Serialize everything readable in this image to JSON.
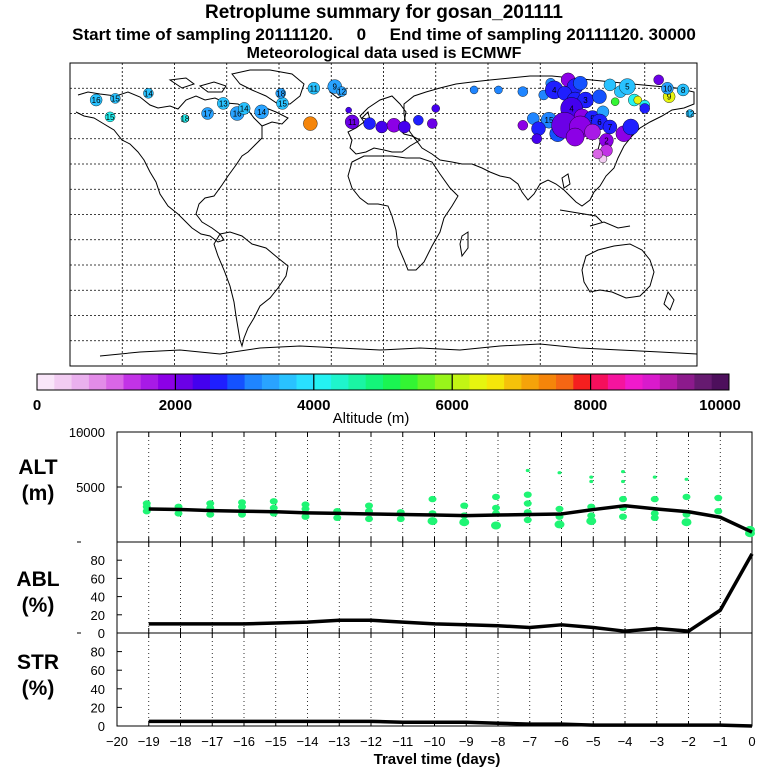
{
  "header": {
    "title": "Retroplume summary for gosan_201111",
    "sampling_line": "Start time of sampling 20111120.     0     End time of sampling 20111120. 30000",
    "met_line": "Meteorological data used is ECMWF"
  },
  "colorbar": {
    "label": "Altitude (m)",
    "ticks": [
      "0",
      "2000",
      "4000",
      "6000",
      "8000",
      "10000"
    ],
    "colors": [
      "#f9e6f9",
      "#f2ccf2",
      "#eab0ee",
      "#e38ce8",
      "#d966e6",
      "#c233e6",
      "#a81ae6",
      "#8c00e6",
      "#6b00e6",
      "#4400ee",
      "#1f1fff",
      "#1452ff",
      "#1f85ff",
      "#29a3ff",
      "#29c2ff",
      "#29e0ff",
      "#24f2f2",
      "#1ff5cc",
      "#1af5a3",
      "#14f57a",
      "#1af552",
      "#33f533",
      "#66f524",
      "#99f51a",
      "#c2f514",
      "#e6f50f",
      "#f5e60a",
      "#f5c20a",
      "#f5a30a",
      "#f5850a",
      "#f56614",
      "#f51f1f",
      "#f50f5c",
      "#f5149e",
      "#f01acc",
      "#d91acc",
      "#b31aa8",
      "#8c1a8c",
      "#661a70",
      "#4d0f5c"
    ]
  },
  "map": {
    "plume_points": [
      {
        "label": "16",
        "lon": -165,
        "lat": 68,
        "color": "#29c2ff",
        "size": 6
      },
      {
        "label": "15",
        "lon": -154,
        "lat": 69,
        "color": "#29c2ff",
        "size": 5
      },
      {
        "label": "14",
        "lon": -135,
        "lat": 72,
        "color": "#29c2ff",
        "size": 5
      },
      {
        "label": "15",
        "lon": -157,
        "lat": 58,
        "color": "#24f2f2",
        "size": 5
      },
      {
        "label": "18",
        "lon": -114,
        "lat": 57,
        "color": "#24f2f2",
        "size": 4
      },
      {
        "label": "17",
        "lon": -101,
        "lat": 60,
        "color": "#29a3ff",
        "size": 6
      },
      {
        "label": "16",
        "lon": -84,
        "lat": 60,
        "color": "#29a3ff",
        "size": 7
      },
      {
        "label": "13",
        "lon": -92,
        "lat": 66,
        "color": "#29c2ff",
        "size": 6
      },
      {
        "label": "14",
        "lon": -80,
        "lat": 63,
        "color": "#29c2ff",
        "size": 6
      },
      {
        "label": "14",
        "lon": -70,
        "lat": 61,
        "color": "#29a3ff",
        "size": 7
      },
      {
        "label": "15",
        "lon": -58,
        "lat": 66,
        "color": "#29c2ff",
        "size": 6
      },
      {
        "label": "18",
        "lon": -59,
        "lat": 72,
        "color": "#29a3ff",
        "size": 5
      },
      {
        "label": "11",
        "lon": -40,
        "lat": 75,
        "color": "#29c2ff",
        "size": 6
      },
      {
        "label": "9",
        "lon": -28,
        "lat": 76,
        "color": "#29a3ff",
        "size": 7
      },
      {
        "label": "12",
        "lon": -24,
        "lat": 73,
        "color": "#29a3ff",
        "size": 5
      },
      {
        "label": "",
        "lon": -20,
        "lat": 62,
        "color": "#4400ee",
        "size": 3
      },
      {
        "label": "",
        "lon": -42,
        "lat": 54,
        "color": "#f5850a",
        "size": 7
      },
      {
        "label": "11",
        "lon": -18,
        "lat": 55,
        "color": "#6b00e6",
        "size": 7
      },
      {
        "label": "",
        "lon": -8,
        "lat": 54,
        "color": "#1f1fff",
        "size": 6
      },
      {
        "label": "",
        "lon": -1,
        "lat": 52,
        "color": "#4400ee",
        "size": 6
      },
      {
        "label": "",
        "lon": 6,
        "lat": 53,
        "color": "#8c00e6",
        "size": 7
      },
      {
        "label": "",
        "lon": 12,
        "lat": 52,
        "color": "#4400ee",
        "size": 6
      },
      {
        "label": "",
        "lon": 20,
        "lat": 56,
        "color": "#1f1fff",
        "size": 5
      },
      {
        "label": "",
        "lon": 28,
        "lat": 54,
        "color": "#6b00e6",
        "size": 5
      },
      {
        "label": "",
        "lon": 30,
        "lat": 63,
        "color": "#4400ee",
        "size": 4
      },
      {
        "label": "",
        "lon": 52,
        "lat": 74,
        "color": "#1f85ff",
        "size": 4
      },
      {
        "label": "",
        "lon": 66,
        "lat": 74,
        "color": "#1f85ff",
        "size": 4
      },
      {
        "label": "",
        "lon": 80,
        "lat": 73,
        "color": "#1f85ff",
        "size": 5
      },
      {
        "label": "",
        "lon": 92,
        "lat": 71,
        "color": "#1f85ff",
        "size": 5
      },
      {
        "label": "",
        "lon": 96,
        "lat": 78,
        "color": "#1f85ff",
        "size": 5
      },
      {
        "label": "4",
        "lon": 98,
        "lat": 74,
        "color": "#1f1fff",
        "size": 9
      },
      {
        "label": "",
        "lon": 106,
        "lat": 80,
        "color": "#8c00e6",
        "size": 7
      },
      {
        "label": "",
        "lon": 110,
        "lat": 76,
        "color": "#1f1fff",
        "size": 8
      },
      {
        "label": "",
        "lon": 104,
        "lat": 72,
        "color": "#1f1fff",
        "size": 7
      },
      {
        "label": "",
        "lon": 113,
        "lat": 78,
        "color": "#1452ff",
        "size": 7
      },
      {
        "label": "",
        "lon": 110,
        "lat": 68,
        "color": "#1f1fff",
        "size": 8
      },
      {
        "label": "3",
        "lon": 116,
        "lat": 68,
        "color": "#1f1fff",
        "size": 8
      },
      {
        "label": "",
        "lon": 124,
        "lat": 70,
        "color": "#1452ff",
        "size": 7
      },
      {
        "label": "",
        "lon": 130,
        "lat": 77,
        "color": "#29c2ff",
        "size": 6
      },
      {
        "label": "",
        "lon": 133,
        "lat": 67,
        "color": "#33f533",
        "size": 4
      },
      {
        "label": "",
        "lon": 136,
        "lat": 73,
        "color": "#29c2ff",
        "size": 6
      },
      {
        "label": "5",
        "lon": 140,
        "lat": 76,
        "color": "#29c2ff",
        "size": 8
      },
      {
        "label": "",
        "lon": 144,
        "lat": 68,
        "color": "#24f2f2",
        "size": 6
      },
      {
        "label": "",
        "lon": 146,
        "lat": 68,
        "color": "#e6f50f",
        "size": 4
      },
      {
        "label": "",
        "lon": 150,
        "lat": 65,
        "color": "#24f2f2",
        "size": 5
      },
      {
        "label": "",
        "lon": 150,
        "lat": 63,
        "color": "#1f1fff",
        "size": 5
      },
      {
        "label": "9",
        "lon": 164,
        "lat": 70,
        "color": "#e6f50f",
        "size": 6
      },
      {
        "label": "",
        "lon": 158,
        "lat": 80,
        "color": "#6b00e6",
        "size": 5
      },
      {
        "label": "10",
        "lon": 163,
        "lat": 75,
        "color": "#29a3ff",
        "size": 6
      },
      {
        "label": "8",
        "lon": 172,
        "lat": 74,
        "color": "#29c2ff",
        "size": 6
      },
      {
        "label": "12",
        "lon": 176,
        "lat": 60,
        "color": "#29c2ff",
        "size": 4
      },
      {
        "label": "4",
        "lon": 108,
        "lat": 63,
        "color": "#4400ee",
        "size": 11
      },
      {
        "label": "",
        "lon": 114,
        "lat": 58,
        "color": "#8c00e6",
        "size": 8
      },
      {
        "label": "5",
        "lon": 120,
        "lat": 57,
        "color": "#1f1fff",
        "size": 8
      },
      {
        "label": "",
        "lon": 126,
        "lat": 61,
        "color": "#29a3ff",
        "size": 6
      },
      {
        "label": "6",
        "lon": 124,
        "lat": 55,
        "color": "#1f1fff",
        "size": 8
      },
      {
        "label": "15",
        "lon": 95,
        "lat": 56,
        "color": "#1f85ff",
        "size": 8
      },
      {
        "label": "",
        "lon": 86,
        "lat": 57,
        "color": "#1f85ff",
        "size": 6
      },
      {
        "label": "",
        "lon": 80,
        "lat": 53,
        "color": "#8c00e6",
        "size": 5
      },
      {
        "label": "",
        "lon": 89,
        "lat": 51,
        "color": "#1f1fff",
        "size": 7
      },
      {
        "label": "6",
        "lon": 100,
        "lat": 48,
        "color": "#1452ff",
        "size": 8
      },
      {
        "label": "",
        "lon": 104,
        "lat": 53,
        "color": "#6b00e6",
        "size": 13
      },
      {
        "label": "",
        "lon": 113,
        "lat": 52,
        "color": "#8c00e6",
        "size": 11
      },
      {
        "label": "",
        "lon": 110,
        "lat": 46,
        "color": "#8c00e6",
        "size": 9
      },
      {
        "label": "",
        "lon": 120,
        "lat": 49,
        "color": "#a81ae6",
        "size": 8
      },
      {
        "label": "7",
        "lon": 130,
        "lat": 52,
        "color": "#1f1fff",
        "size": 7
      },
      {
        "label": "",
        "lon": 138,
        "lat": 48,
        "color": "#8c00e6",
        "size": 8
      },
      {
        "label": "",
        "lon": 142,
        "lat": 52,
        "color": "#1f1fff",
        "size": 8
      },
      {
        "label": "2",
        "lon": 128,
        "lat": 44,
        "color": "#8c00e6",
        "size": 7
      },
      {
        "label": "",
        "lon": 128,
        "lat": 38,
        "color": "#c233e6",
        "size": 6
      },
      {
        "label": "",
        "lon": 126,
        "lat": 33,
        "color": "#f2ccf2",
        "size": 4
      },
      {
        "label": "",
        "lon": 123,
        "lat": 36,
        "color": "#d966e6",
        "size": 5
      },
      {
        "label": "",
        "lon": 88,
        "lat": 45,
        "color": "#4400ee",
        "size": 5
      }
    ]
  },
  "panels": [
    {
      "name": "altitude",
      "label": "ALT",
      "unit": "(m)",
      "yticks": [
        "10000",
        "5000"
      ]
    },
    {
      "name": "abl",
      "label": "ABL",
      "unit": "(%)",
      "yticks": [
        "80",
        "60",
        "40",
        "20",
        "0"
      ]
    },
    {
      "name": "str",
      "label": "STR",
      "unit": "(%)",
      "yticks": [
        "80",
        "60",
        "40",
        "20",
        "0"
      ]
    }
  ],
  "xaxis": {
    "label": "Travel time (days)",
    "ticks": [
      "−20",
      "−19",
      "−18",
      "−17",
      "−16",
      "−15",
      "−14",
      "−13",
      "−12",
      "−11",
      "−10",
      "−9",
      "−8",
      "−7",
      "−6",
      "−5",
      "−4",
      "−3",
      "−2",
      "−1",
      "0"
    ]
  },
  "chart_data": {
    "type": "line",
    "title": "Retroplume summary for gosan_201111",
    "xlabel": "Travel time (days)",
    "xlim": [
      -20,
      0
    ],
    "panels": [
      {
        "name": "ALT",
        "ylabel": "ALT (m)",
        "ylim": [
          0,
          10000
        ],
        "mean_line": {
          "x": [
            -19,
            -18,
            -17,
            -16,
            -15,
            -14,
            -13,
            -12,
            -11,
            -10,
            -9,
            -8,
            -7,
            -6,
            -5,
            -4,
            -3,
            -2,
            -1,
            0
          ],
          "y": [
            3000,
            2950,
            2850,
            2800,
            2750,
            2650,
            2600,
            2550,
            2500,
            2450,
            2400,
            2450,
            2500,
            2550,
            2950,
            3300,
            3000,
            2750,
            2250,
            900
          ]
        },
        "clusters": {
          "marker_color": "#1ff574",
          "points": [
            [
              -19,
              3200
            ],
            [
              -19,
              2800
            ],
            [
              -19,
              3500
            ],
            [
              -18,
              3200
            ],
            [
              -18,
              2600
            ],
            [
              -17,
              3100
            ],
            [
              -17,
              2500
            ],
            [
              -17,
              3500
            ],
            [
              -16,
              3200
            ],
            [
              -16,
              2500
            ],
            [
              -16,
              3600
            ],
            [
              -15,
              3100
            ],
            [
              -15,
              2600
            ],
            [
              -15,
              3700
            ],
            [
              -14,
              3000
            ],
            [
              -14,
              2300
            ],
            [
              -14,
              3400
            ],
            [
              -13,
              2800
            ],
            [
              -13,
              2200
            ],
            [
              -12,
              2800
            ],
            [
              -12,
              2100
            ],
            [
              -12,
              3300
            ],
            [
              -11,
              2700
            ],
            [
              -11,
              2100
            ],
            [
              -10,
              2600
            ],
            [
              -10,
              1900
            ],
            [
              -10,
              3900
            ],
            [
              -9,
              2400
            ],
            [
              -9,
              1800
            ],
            [
              -9,
              3300
            ],
            [
              -8,
              2600
            ],
            [
              -8,
              1500
            ],
            [
              -8,
              3100
            ],
            [
              -8,
              4100
            ],
            [
              -7,
              2700
            ],
            [
              -7,
              2000
            ],
            [
              -7,
              3500
            ],
            [
              -7,
              4300
            ],
            [
              -7,
              6500
            ],
            [
              -6,
              2300
            ],
            [
              -6,
              1600
            ],
            [
              -6,
              3000
            ],
            [
              -6,
              6300
            ],
            [
              -5,
              2400
            ],
            [
              -5,
              1900
            ],
            [
              -5,
              3200
            ],
            [
              -5,
              5500
            ],
            [
              -5,
              5900
            ],
            [
              -4,
              2300
            ],
            [
              -4,
              3100
            ],
            [
              -4,
              3900
            ],
            [
              -4,
              5500
            ],
            [
              -4,
              6400
            ],
            [
              -3,
              2200
            ],
            [
              -3,
              2600
            ],
            [
              -3,
              3900
            ],
            [
              -3,
              5900
            ],
            [
              -2,
              1800
            ],
            [
              -2,
              2500
            ],
            [
              -2,
              4100
            ],
            [
              -2,
              5700
            ],
            [
              -1,
              2800
            ],
            [
              -1,
              4000
            ],
            [
              0,
              800
            ],
            [
              0,
              1100
            ]
          ]
        }
      },
      {
        "name": "ABL",
        "ylabel": "ABL (%)",
        "ylim": [
          0,
          100
        ],
        "x": [
          -19,
          -18,
          -17,
          -16,
          -15,
          -14,
          -13,
          -12,
          -11,
          -10,
          -9,
          -8,
          -7,
          -6,
          -5,
          -4,
          -3,
          -2,
          -1,
          0
        ],
        "y": [
          10,
          10,
          10,
          10,
          11,
          12,
          14,
          14,
          12,
          10,
          9,
          8,
          6,
          9,
          6,
          2,
          5,
          2,
          25,
          87
        ]
      },
      {
        "name": "STR",
        "ylabel": "STR (%)",
        "ylim": [
          0,
          100
        ],
        "x": [
          -19,
          -18,
          -17,
          -16,
          -15,
          -14,
          -13,
          -12,
          -11,
          -10,
          -9,
          -8,
          -7,
          -6,
          -5,
          -4,
          -3,
          -2,
          -1,
          0
        ],
        "y": [
          5,
          5,
          5,
          5,
          5,
          5,
          5,
          5,
          4,
          4,
          4,
          3,
          2,
          2,
          1,
          1,
          1,
          1,
          1,
          0
        ]
      }
    ]
  }
}
